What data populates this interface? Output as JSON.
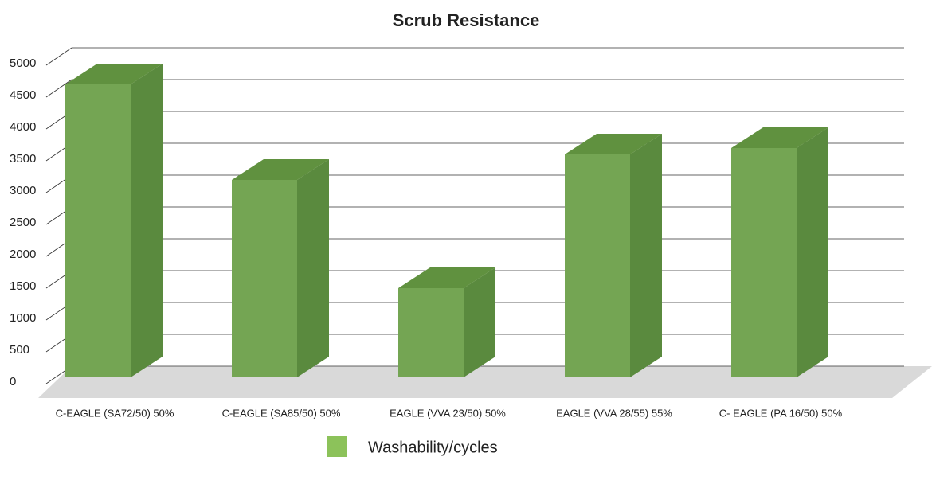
{
  "chart_data": {
    "type": "bar3d",
    "title": "Scrub Resistance",
    "categories": [
      "C-EAGLE (SA72/50) 50%",
      "C-EAGLE (SA85/50) 50%",
      "EAGLE (VVA 23/50) 50%",
      "EAGLE (VVA 28/55) 55%",
      "C- EAGLE (PA 16/50) 50%"
    ],
    "series": [
      {
        "name": "Washability/cycles",
        "color": "#74a553",
        "values": [
          4600,
          3100,
          1400,
          3500,
          3600
        ]
      }
    ],
    "ylim": [
      0,
      5000
    ],
    "yticks": [
      0,
      500,
      1000,
      1500,
      2000,
      2500,
      3000,
      3500,
      4000,
      4500,
      5000
    ],
    "grid": true
  }
}
